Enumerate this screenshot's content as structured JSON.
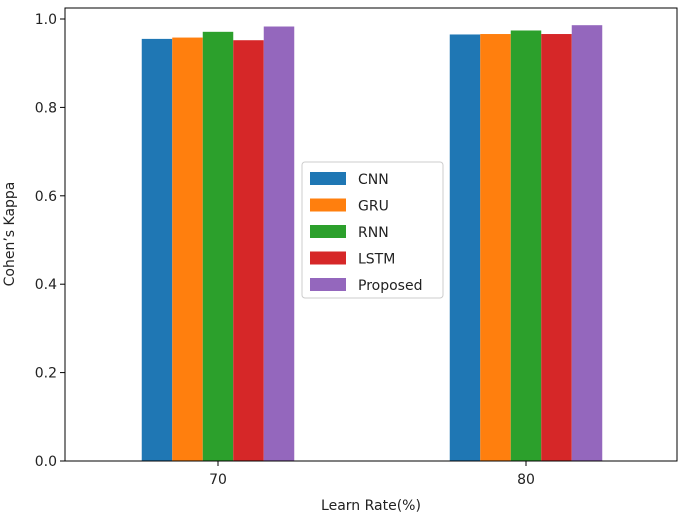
{
  "chart_data": {
    "type": "bar",
    "title": "",
    "xlabel": "Learn Rate(%)",
    "ylabel": "Cohen’s Kappa",
    "categories": [
      "70",
      "80"
    ],
    "ylim": [
      0,
      1.0
    ],
    "yticks": [
      "0.0",
      "0.2",
      "0.4",
      "0.6",
      "0.8",
      "1.0"
    ],
    "grid": false,
    "legend_position": "center",
    "series": [
      {
        "name": "CNN",
        "color": "#1f77b4",
        "values": [
          0.955,
          0.965
        ]
      },
      {
        "name": "GRU",
        "color": "#ff7f0e",
        "values": [
          0.958,
          0.966
        ]
      },
      {
        "name": "RNN",
        "color": "#2ca02c",
        "values": [
          0.971,
          0.974
        ]
      },
      {
        "name": "LSTM",
        "color": "#d62728",
        "values": [
          0.952,
          0.966
        ]
      },
      {
        "name": "Proposed",
        "color": "#9467bd",
        "values": [
          0.983,
          0.986
        ]
      }
    ]
  }
}
